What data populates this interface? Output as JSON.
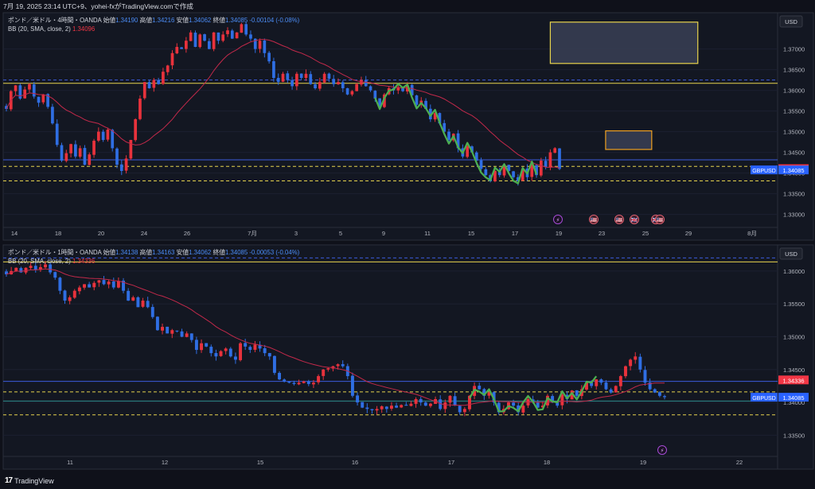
{
  "header": {
    "caption": "7月 19, 2025 23:14 UTC+9、yohei-fxがTradingView.comで作成"
  },
  "brand": {
    "logo": "17",
    "name": "TradingView"
  },
  "colors": {
    "background": "#0f111a",
    "up": "#e8323c",
    "down": "#2f6ee3",
    "bb_basis": "#c2294a",
    "pattern": "#4caf50",
    "level_yellow": "#e8d44d",
    "level_blue": "#3b5bdb",
    "last_price_label": "#2962ff",
    "bb_label": "#f23645",
    "zone_border": "#f0a020",
    "zone_fill": "#3a3f55",
    "text": "#cfd3dc",
    "grid": "#1c2030"
  },
  "chart_data": [
    {
      "type": "candlestick",
      "symbol": "GBPUSD",
      "title": "ポンド／米ドル・4時間・OANDA",
      "ohlc_labels": {
        "open": "始値",
        "high": "高値",
        "low": "安値",
        "close": "終値"
      },
      "ohlc_values": {
        "open": "1.34190",
        "high": "1.34216",
        "low": "1.34062",
        "close": "1.34085",
        "change": "-0.00104 (-0.08%)"
      },
      "indicator": "BB (20, SMA, close, 2)",
      "indicator_value": "1.34096",
      "currency": "USD",
      "ylim": [
        1.328,
        1.378
      ],
      "y_ticks": [
        "1.37000",
        "1.36500",
        "1.36000",
        "1.35500",
        "1.35000",
        "1.34500",
        "1.34000",
        "1.33500",
        "1.33000"
      ],
      "x_ticks": [
        "14",
        "18",
        "20",
        "24",
        "26",
        "7月",
        "3",
        "5",
        "9",
        "11",
        "15",
        "17",
        "19",
        "23",
        "25",
        "29",
        "8月"
      ],
      "last_price": "1.34085",
      "bb_price": "1.34096",
      "symbol_label": "GBPUSD",
      "horizontal_levels": [
        {
          "price": 1.3625,
          "style": "dashed",
          "color": "blue"
        },
        {
          "price": 1.3617,
          "style": "solid",
          "color": "yellow"
        },
        {
          "price": 1.3432,
          "style": "solid",
          "color": "blue"
        },
        {
          "price": 1.3416,
          "style": "dashed",
          "color": "yellow"
        },
        {
          "price": 1.3381,
          "style": "dashed",
          "color": "yellow"
        }
      ],
      "zones": [
        {
          "x_index": [
            118,
            150
          ],
          "price": [
            1.3665,
            1.3765
          ]
        },
        {
          "x_index": [
            130,
            140
          ],
          "price": [
            1.3457,
            1.3502
          ]
        }
      ],
      "pattern_x_index": [
        80,
        115
      ],
      "event_icons": [
        "⚡",
        "🇺🇸",
        "🇺🇸",
        "🇬🇧",
        "🇬🇧",
        "🇺🇸"
      ],
      "close_path": [
        1.3555,
        1.3598,
        1.3612,
        1.358,
        1.3602,
        1.3615,
        1.3585,
        1.357,
        1.359,
        1.356,
        1.352,
        1.3468,
        1.343,
        1.3448,
        1.347,
        1.344,
        1.346,
        1.342,
        1.3445,
        1.3478,
        1.35,
        1.348,
        1.3505,
        1.346,
        1.342,
        1.3405,
        1.3435,
        1.348,
        1.353,
        1.358,
        1.362,
        1.3605,
        1.3625,
        1.3615,
        1.3645,
        1.366,
        1.369,
        1.3705,
        1.37,
        1.372,
        1.374,
        1.3705,
        1.3735,
        1.372,
        1.37,
        1.374,
        1.372,
        1.3735,
        1.3745,
        1.3725,
        1.374,
        1.376,
        1.3735,
        1.3725,
        1.37,
        1.372,
        1.369,
        1.367,
        1.363,
        1.362,
        1.364,
        1.3625,
        1.361,
        1.364,
        1.363,
        1.364,
        1.3615,
        1.3605,
        1.362,
        1.364,
        1.3628,
        1.3615,
        1.362,
        1.3605,
        1.359,
        1.3598,
        1.3615,
        1.3625,
        1.361,
        1.36,
        1.358,
        1.356,
        1.359,
        1.3605,
        1.36,
        1.3608,
        1.3598,
        1.3612,
        1.3588,
        1.3565,
        1.3575,
        1.3555,
        1.353,
        1.3545,
        1.352,
        1.35,
        1.348,
        1.3495,
        1.346,
        1.344,
        1.3465,
        1.345,
        1.343,
        1.341,
        1.3395,
        1.338,
        1.3405,
        1.3395,
        1.342,
        1.3405,
        1.339,
        1.338,
        1.341,
        1.339,
        1.342,
        1.3395,
        1.343,
        1.3415,
        1.345,
        1.346,
        1.341
      ]
    },
    {
      "type": "candlestick",
      "symbol": "GBPUSD",
      "title": "ポンド／米ドル・1時間・OANDA",
      "ohlc_labels": {
        "open": "始値",
        "high": "高値",
        "low": "安値",
        "close": "終値"
      },
      "ohlc_values": {
        "open": "1.34138",
        "high": "1.34163",
        "low": "1.34062",
        "close": "1.34085",
        "change": "-0.00053 (-0.04%)"
      },
      "indicator": "BB (20, SMA, close, 2)",
      "indicator_value": "1.34336",
      "currency": "USD",
      "ylim": [
        1.3325,
        1.3635
      ],
      "y_ticks": [
        "1.36000",
        "1.35500",
        "1.35000",
        "1.34500",
        "1.34000",
        "1.33500"
      ],
      "x_ticks": [
        "11",
        "12",
        "15",
        "16",
        "17",
        "18",
        "19",
        "22"
      ],
      "last_price": "1.34085",
      "bb_price": "1.34336",
      "symbol_label": "GBPUSD",
      "horizontal_levels": [
        {
          "price": 1.362,
          "style": "dashed",
          "color": "blue"
        },
        {
          "price": 1.3614,
          "style": "solid",
          "color": "yellow"
        },
        {
          "price": 1.3432,
          "style": "solid",
          "color": "blue"
        },
        {
          "price": 1.3416,
          "style": "dashed",
          "color": "yellow"
        },
        {
          "price": 1.3402,
          "style": "solid",
          "color": "teal"
        },
        {
          "price": 1.3381,
          "style": "dashed",
          "color": "yellow"
        }
      ],
      "pattern_x_index": [
        95,
        121
      ],
      "event_icons": [
        "⚡"
      ],
      "close_path": [
        1.3595,
        1.36,
        1.3605,
        1.3598,
        1.3605,
        1.3608,
        1.3602,
        1.3606,
        1.361,
        1.3598,
        1.359,
        1.357,
        1.3555,
        1.356,
        1.357,
        1.3575,
        1.358,
        1.3575,
        1.3582,
        1.3586,
        1.358,
        1.3584,
        1.3575,
        1.3585,
        1.357,
        1.3555,
        1.356,
        1.3545,
        1.3555,
        1.3545,
        1.353,
        1.351,
        1.3515,
        1.3505,
        1.351,
        1.3508,
        1.35,
        1.3505,
        1.3495,
        1.348,
        1.349,
        1.3485,
        1.3475,
        1.347,
        1.3478,
        1.3482,
        1.347,
        1.3465,
        1.349,
        1.3485,
        1.348,
        1.3488,
        1.3482,
        1.3475,
        1.347,
        1.3445,
        1.3435,
        1.3432,
        1.343,
        1.3428,
        1.343,
        1.3432,
        1.3428,
        1.343,
        1.344,
        1.345,
        1.3452,
        1.3455,
        1.3458,
        1.3455,
        1.344,
        1.341,
        1.34,
        1.3392,
        1.339,
        1.3388,
        1.339,
        1.3394,
        1.339,
        1.3395,
        1.3392,
        1.3396,
        1.3395,
        1.3398,
        1.3405,
        1.34,
        1.3395,
        1.3398,
        1.3405,
        1.339,
        1.34,
        1.341,
        1.3395,
        1.3385,
        1.339,
        1.341,
        1.3425,
        1.342,
        1.341,
        1.3415,
        1.34,
        1.3385,
        1.339,
        1.34,
        1.3395,
        1.3385,
        1.3395,
        1.3405,
        1.34,
        1.3392,
        1.3395,
        1.341,
        1.34,
        1.3395,
        1.3412,
        1.3405,
        1.3418,
        1.341,
        1.342,
        1.343,
        1.3425,
        1.3435,
        1.343,
        1.342,
        1.3415,
        1.3425,
        1.344,
        1.3455,
        1.3465,
        1.347,
        1.345,
        1.343,
        1.342,
        1.3415,
        1.341,
        1.3408
      ]
    }
  ]
}
